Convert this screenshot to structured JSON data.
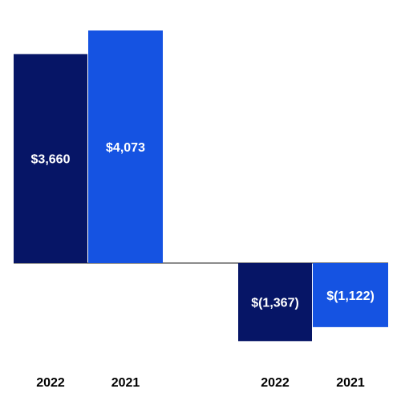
{
  "chart_data": {
    "type": "bar",
    "bars": [
      {
        "category": "2022",
        "value": 3660,
        "label": "$3,660",
        "color": "#061566"
      },
      {
        "category": "2021",
        "value": 4073,
        "label": "$4,073",
        "color": "#1553e2"
      },
      {
        "category": "2022",
        "value": -1367,
        "label": "$(1,367)",
        "color": "#061566"
      },
      {
        "category": "2021",
        "value": -1122,
        "label": "$(1,122)",
        "color": "#1553e2"
      }
    ],
    "zero_line_color": "#666666",
    "grid": false,
    "legend": "none"
  }
}
